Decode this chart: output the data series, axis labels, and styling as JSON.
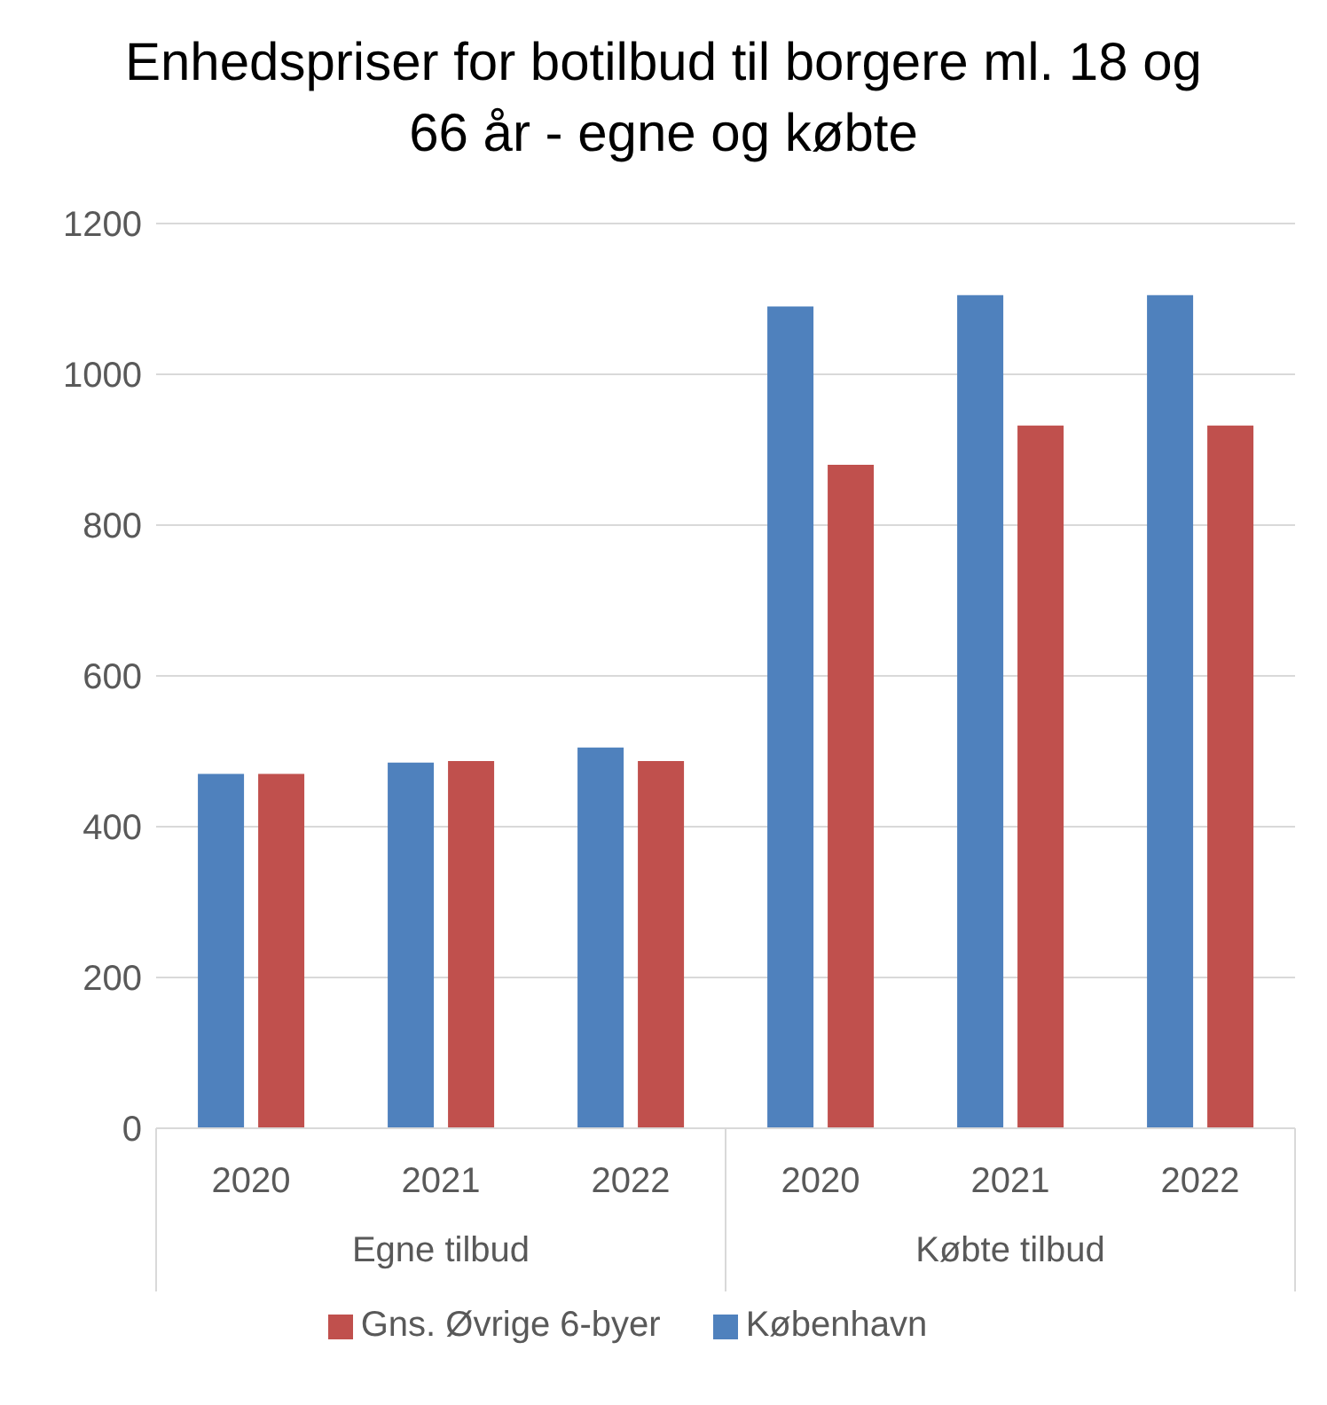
{
  "chart_data": {
    "type": "bar",
    "title": "Enhedspriser for botilbud til borgere ml. 18 og 66 år - egne og købte",
    "categories": [
      "2020",
      "2021",
      "2022",
      "2020",
      "2021",
      "2022"
    ],
    "series": [
      {
        "name": "København",
        "color": "#4f81bd",
        "values": [
          470,
          485,
          505,
          1090,
          1105,
          1105
        ]
      },
      {
        "name": "Gns. Øvrige 6-byer",
        "color": "#c0504d",
        "values": [
          470,
          487,
          487,
          880,
          932,
          932
        ]
      }
    ],
    "annotations": [
      "Egne tilbud",
      "Købte tilbud"
    ],
    "ylim": [
      0,
      1200
    ],
    "yticks": [
      0,
      200,
      400,
      600,
      800,
      1000,
      1200
    ],
    "grid": "y",
    "legend": "bottom"
  }
}
